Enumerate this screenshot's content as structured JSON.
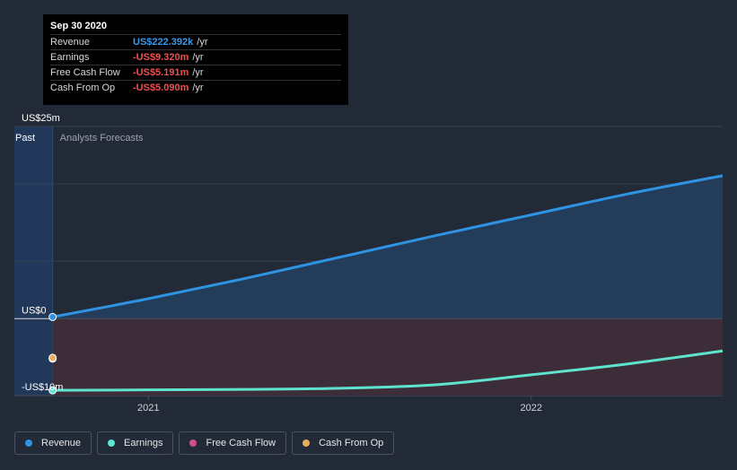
{
  "tooltip": {
    "date": "Sep 30 2020",
    "rows": [
      {
        "name": "Revenue",
        "value": "US$222.392k",
        "unit": "/yr",
        "color": "#3b9be8"
      },
      {
        "name": "Earnings",
        "value": "-US$9.320m",
        "unit": "/yr",
        "color": "#ef4f4f"
      },
      {
        "name": "Free Cash Flow",
        "value": "-US$5.191m",
        "unit": "/yr",
        "color": "#ef4f4f"
      },
      {
        "name": "Cash From Op",
        "value": "-US$5.090m",
        "unit": "/yr",
        "color": "#ef4f4f"
      }
    ]
  },
  "regions": {
    "past": "Past",
    "forecast": "Analysts Forecasts"
  },
  "legend": [
    {
      "label": "Revenue",
      "color": "#2f93e3"
    },
    {
      "label": "Earnings",
      "color": "#5ee3cf"
    },
    {
      "label": "Free Cash Flow",
      "color": "#d04f86"
    },
    {
      "label": "Cash From Op",
      "color": "#e8ad5c"
    }
  ],
  "chart_data": {
    "type": "line",
    "y_ticks": [
      "US$25m",
      "US$0",
      "-US$10m"
    ],
    "x_ticks": [
      {
        "label": "2021",
        "t": 2021.0
      },
      {
        "label": "2022",
        "t": 2022.0
      }
    ],
    "ylim": [
      -10,
      25
    ],
    "xlim": [
      2020.65,
      2022.5
    ],
    "past_end": 2020.75,
    "grid": true,
    "series": [
      {
        "name": "Revenue",
        "color": "#2f93e3",
        "points": [
          [
            2020.75,
            0.22
          ],
          [
            2021.0,
            2.6
          ],
          [
            2021.25,
            5.2
          ],
          [
            2021.5,
            8.0
          ],
          [
            2021.75,
            10.8
          ],
          [
            2022.0,
            13.5
          ],
          [
            2022.25,
            16.2
          ],
          [
            2022.5,
            18.6
          ]
        ]
      },
      {
        "name": "Earnings",
        "color": "#5ee3cf",
        "points": [
          [
            2020.75,
            -9.32
          ],
          [
            2021.0,
            -9.26
          ],
          [
            2021.25,
            -9.2
          ],
          [
            2021.5,
            -9.05
          ],
          [
            2021.75,
            -8.6
          ],
          [
            2022.0,
            -7.3
          ],
          [
            2022.25,
            -5.9
          ],
          [
            2022.5,
            -4.2
          ]
        ]
      },
      {
        "name": "Cash From Op",
        "color": "#e8ad5c",
        "points": [
          [
            2020.75,
            -5.09
          ]
        ]
      },
      {
        "name": "Free Cash Flow",
        "color": "#d04f86",
        "points": [
          [
            2020.75,
            -5.191
          ]
        ]
      }
    ]
  }
}
